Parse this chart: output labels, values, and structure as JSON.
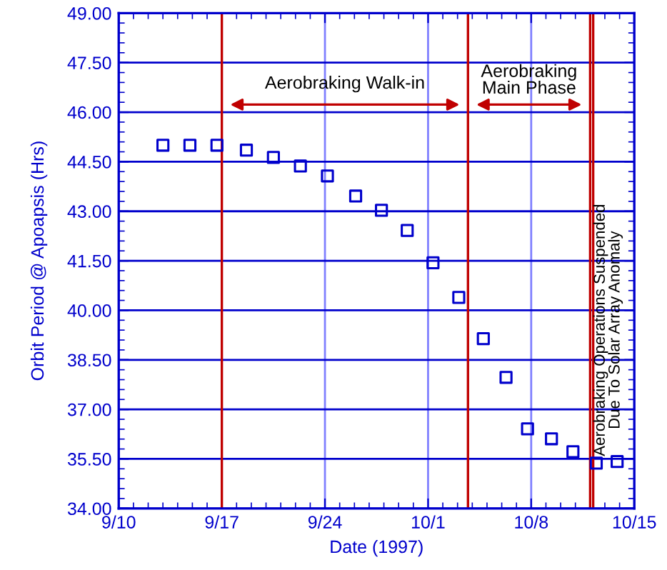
{
  "chart_data": {
    "type": "scatter",
    "xlabel": "Date (1997)",
    "ylabel": "Orbit Period @ Apoapsis (Hrs)",
    "x": [
      "1997-09-13T00:00",
      "1997-09-14T20:00",
      "1997-09-16T16:00",
      "1997-09-18T16:00",
      "1997-09-20T12:00",
      "1997-09-22T08:00",
      "1997-09-24T04:00",
      "1997-09-26T02:00",
      "1997-09-27T20:00",
      "1997-09-29T14:00",
      "1997-10-01T08:00",
      "1997-10-03T02:00",
      "1997-10-04T18:00",
      "1997-10-06T07:00",
      "1997-10-07T18:00",
      "1997-10-09T09:00",
      "1997-10-10T20:00",
      "1997-10-12T10:00",
      "1997-10-13T20:00"
    ],
    "series": [
      {
        "color": "#0000cc",
        "values": [
          45.0,
          45.0,
          45.0,
          44.85,
          44.63,
          44.37,
          44.07,
          43.46,
          43.03,
          42.42,
          41.44,
          40.39,
          39.14,
          37.97,
          36.41,
          36.11,
          35.72,
          35.37,
          35.42
        ]
      }
    ],
    "marker": "square",
    "xlim": [
      "1997-09-10",
      "1997-10-15"
    ],
    "xticks": [
      {
        "value": "1997-09-10",
        "label": "9/10"
      },
      {
        "value": "1997-09-17",
        "label": "9/17"
      },
      {
        "value": "1997-09-24",
        "label": "9/24"
      },
      {
        "value": "1997-10-01",
        "label": "10/1"
      },
      {
        "value": "1997-10-08",
        "label": "10/8"
      },
      {
        "value": "1997-10-15",
        "label": "10/15"
      }
    ],
    "ylim": [
      34,
      49
    ],
    "yticks": [
      {
        "value": 34,
        "label": "34.00"
      },
      {
        "value": 35.5,
        "label": "35.50"
      },
      {
        "value": 37,
        "label": "37.00"
      },
      {
        "value": 38.5,
        "label": "38.50"
      },
      {
        "value": 40,
        "label": "40.00"
      },
      {
        "value": 41.5,
        "label": "41.50"
      },
      {
        "value": 43,
        "label": "43.00"
      },
      {
        "value": 44.5,
        "label": "44.50"
      },
      {
        "value": 46,
        "label": "46.00"
      },
      {
        "value": 47.5,
        "label": "47.50"
      },
      {
        "value": 49,
        "label": "49.00"
      }
    ],
    "grid": true,
    "ref_lines": [
      {
        "axis": "x",
        "value": "1997-09-17",
        "color": "#c00000"
      },
      {
        "axis": "x",
        "value": "1997-10-03T17:00",
        "color": "#c00000"
      },
      {
        "axis": "x",
        "value": "1997-10-12T00:00",
        "color": "#c00000"
      },
      {
        "axis": "x",
        "value": "1997-10-12T05:00",
        "color": "#c00000"
      }
    ],
    "annotations": [
      "Aerobraking Walk-in",
      "Aerobraking\nMain Phase",
      "Aerobraking Operations Suspended\nDue To Solar Array Anomaly"
    ]
  }
}
